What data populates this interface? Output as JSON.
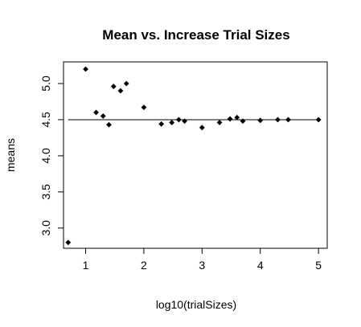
{
  "chart_data": {
    "type": "scatter",
    "title": "Mean vs. Increase Trial Sizes",
    "xlabel": "log10(trialSizes)",
    "ylabel": "means",
    "x_ticks": [
      "1",
      "2",
      "3",
      "4",
      "5"
    ],
    "y_ticks": [
      "3.0",
      "3.5",
      "4.0",
      "4.5",
      "5.0"
    ],
    "xlim": [
      0.62,
      5.15
    ],
    "ylim": [
      2.72,
      5.3
    ],
    "reference_line": {
      "y": 4.5,
      "x_from": 0.7,
      "x_to": 5.0
    },
    "marker_color": "#000000",
    "points": [
      {
        "x": 0.7,
        "y": 2.8
      },
      {
        "x": 1.0,
        "y": 5.2
      },
      {
        "x": 1.18,
        "y": 4.6
      },
      {
        "x": 1.3,
        "y": 4.55
      },
      {
        "x": 1.4,
        "y": 4.43
      },
      {
        "x": 1.48,
        "y": 4.96
      },
      {
        "x": 1.6,
        "y": 4.9
      },
      {
        "x": 1.7,
        "y": 5.0
      },
      {
        "x": 2.0,
        "y": 4.67
      },
      {
        "x": 2.3,
        "y": 4.44
      },
      {
        "x": 2.48,
        "y": 4.46
      },
      {
        "x": 2.6,
        "y": 4.5
      },
      {
        "x": 2.7,
        "y": 4.48
      },
      {
        "x": 3.0,
        "y": 4.39
      },
      {
        "x": 3.3,
        "y": 4.46
      },
      {
        "x": 3.48,
        "y": 4.51
      },
      {
        "x": 3.6,
        "y": 4.53
      },
      {
        "x": 3.7,
        "y": 4.48
      },
      {
        "x": 4.0,
        "y": 4.49
      },
      {
        "x": 4.3,
        "y": 4.5
      },
      {
        "x": 4.48,
        "y": 4.5
      },
      {
        "x": 5.0,
        "y": 4.5
      }
    ]
  }
}
